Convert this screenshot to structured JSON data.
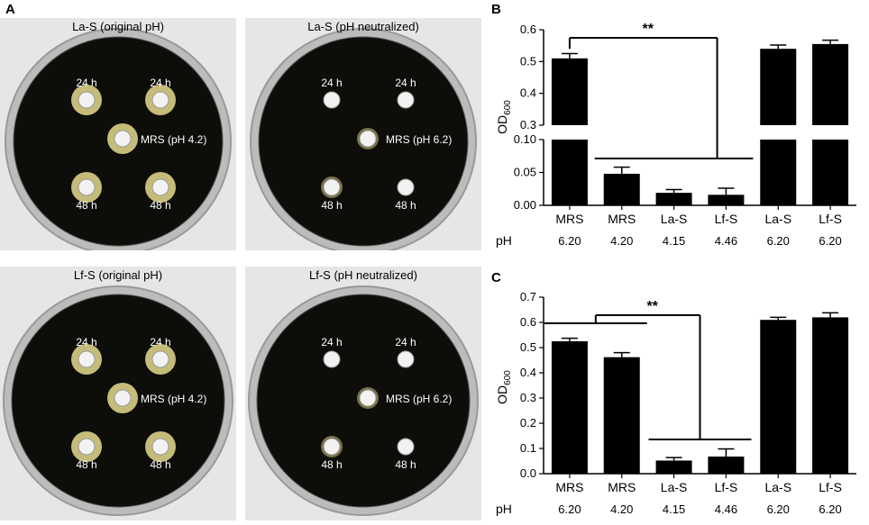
{
  "panel_labels": {
    "a": "A",
    "b": "B",
    "c": "C"
  },
  "plates": [
    {
      "title": "La-S (original pH)",
      "spots": [
        {
          "label": "24 h",
          "zone": "large"
        },
        {
          "label": "24 h",
          "zone": "large"
        },
        {
          "label": "MRS (pH 4.2)",
          "zone": "large"
        },
        {
          "label": "48 h",
          "zone": "large"
        },
        {
          "label": "48 h",
          "zone": "large"
        }
      ]
    },
    {
      "title": "La-S (pH neutralized)",
      "spots": [
        {
          "label": "24 h",
          "zone": "none"
        },
        {
          "label": "24 h",
          "zone": "none"
        },
        {
          "label": "MRS (pH 6.2)",
          "zone": "small"
        },
        {
          "label": "48 h",
          "zone": "small"
        },
        {
          "label": "48 h",
          "zone": "none"
        }
      ]
    },
    {
      "title": "Lf-S (original pH)",
      "spots": [
        {
          "label": "24 h",
          "zone": "large"
        },
        {
          "label": "24 h",
          "zone": "large"
        },
        {
          "label": "MRS (pH 4.2)",
          "zone": "large"
        },
        {
          "label": "48 h",
          "zone": "large"
        },
        {
          "label": "48 h",
          "zone": "large"
        }
      ]
    },
    {
      "title": "Lf-S (pH neutralized)",
      "spots": [
        {
          "label": "24 h",
          "zone": "none"
        },
        {
          "label": "24 h",
          "zone": "none"
        },
        {
          "label": "MRS (pH 6.2)",
          "zone": "small"
        },
        {
          "label": "48 h",
          "zone": "small"
        },
        {
          "label": "48 h",
          "zone": "none"
        }
      ]
    }
  ],
  "colors": {
    "bar": "#000000",
    "plate_bg": "#0d0d0a",
    "zone": "#d9cf86",
    "dish_rim": "#c9c9c9",
    "photo_bg": "#e6e6e6"
  },
  "chart_data": [
    {
      "type": "bar",
      "panel": "B",
      "categories": [
        "MRS",
        "MRS",
        "La-S",
        "Lf-S",
        "La-S",
        "Lf-S"
      ],
      "ph_label": "pH",
      "ph_values": [
        "6.20",
        "4.20",
        "4.15",
        "4.46",
        "6.20",
        "6.20"
      ],
      "values": [
        0.51,
        0.048,
        0.019,
        0.016,
        0.54,
        0.555
      ],
      "errors": [
        0.015,
        0.01,
        0.005,
        0.01,
        0.012,
        0.012
      ],
      "ylabel_main": "OD",
      "ylabel_sub": "600",
      "axis_break": {
        "lower_range": [
          0,
          0.1
        ],
        "upper_range": [
          0.3,
          0.6
        ]
      },
      "yticks_lower": [
        "0.00",
        "0.05",
        "0.10"
      ],
      "yticks_upper": [
        "0.3",
        "0.4",
        "0.5",
        "0.6"
      ],
      "annotation": "**"
    },
    {
      "type": "bar",
      "panel": "C",
      "categories": [
        "MRS",
        "MRS",
        "La-S",
        "Lf-S",
        "La-S",
        "Lf-S"
      ],
      "ph_label": "pH",
      "ph_values": [
        "6.20",
        "4.20",
        "4.15",
        "4.46",
        "6.20",
        "6.20"
      ],
      "values": [
        0.525,
        0.462,
        0.052,
        0.068,
        0.61,
        0.62
      ],
      "errors": [
        0.012,
        0.018,
        0.012,
        0.03,
        0.01,
        0.018
      ],
      "ylabel_main": "OD",
      "ylabel_sub": "600",
      "ylim": [
        0,
        0.7
      ],
      "yticks": [
        "0.0",
        "0.1",
        "0.2",
        "0.3",
        "0.4",
        "0.5",
        "0.6",
        "0.7"
      ],
      "annotation": "**"
    }
  ]
}
